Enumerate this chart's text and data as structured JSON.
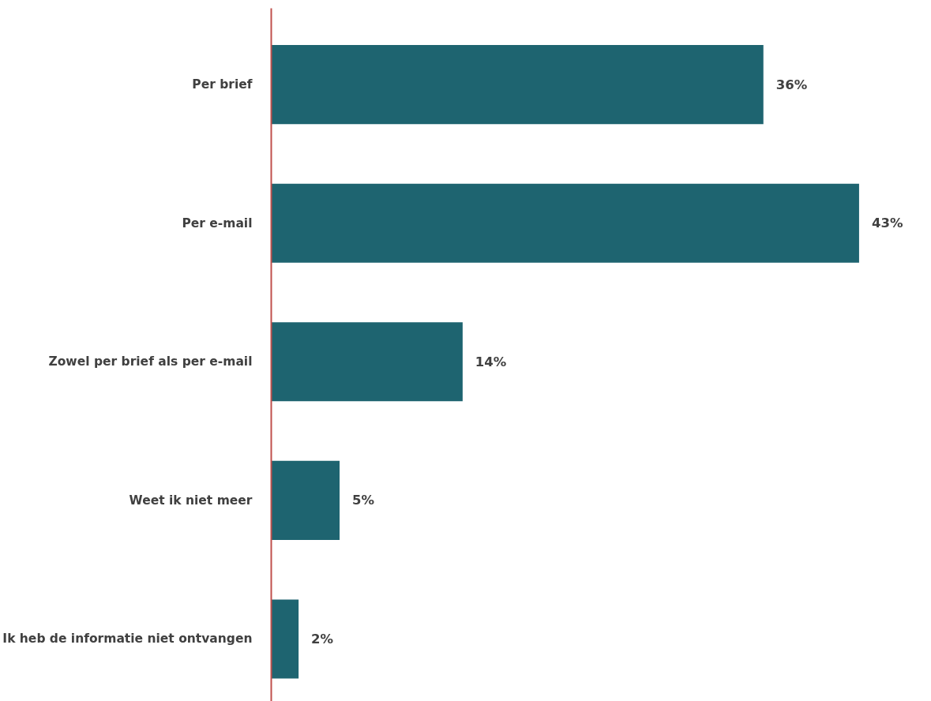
{
  "chart_data": {
    "type": "bar",
    "orientation": "horizontal",
    "categories": [
      "Per brief",
      "Per e-mail",
      "Zowel per brief als per e-mail",
      "Weet ik niet meer",
      "Ik heb de informatie niet ontvangen"
    ],
    "values": [
      36,
      43,
      14,
      5,
      2
    ],
    "color": "#1e6470",
    "value_labels": [
      "36%",
      "43%",
      "14%",
      "5%",
      "2%"
    ]
  }
}
